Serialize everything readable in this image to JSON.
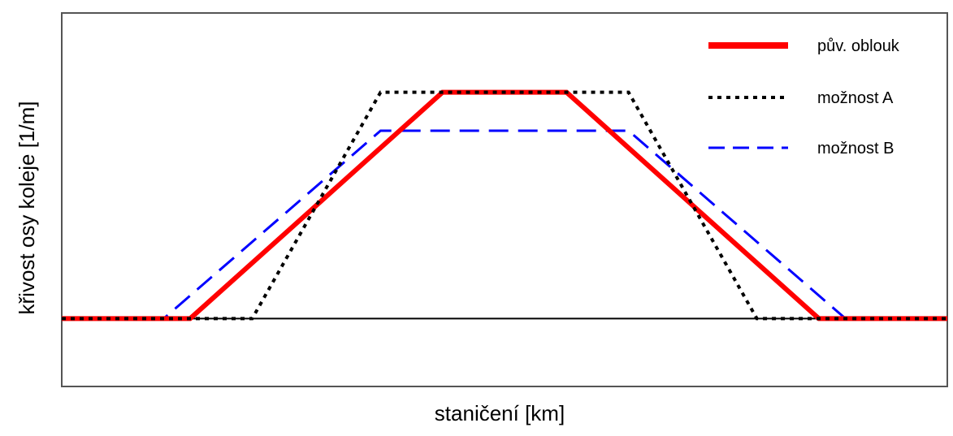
{
  "chart_data": {
    "type": "line",
    "title": "",
    "xlabel": "staničení [km]",
    "ylabel": "křivost osy koleje [1/m]",
    "xlim": [
      0,
      100
    ],
    "ylim": [
      -0.3,
      1.35
    ],
    "grid": false,
    "legend_position": "top-right",
    "baseline": 0,
    "series": [
      {
        "name": "pův. oblouk",
        "color": "#ff0000",
        "style": "solid",
        "x": [
          0,
          14.5,
          43,
          57,
          85.5,
          100
        ],
        "y": [
          0,
          0,
          1,
          1,
          0,
          0
        ]
      },
      {
        "name": "možnost A",
        "color": "#000000",
        "style": "dotted",
        "x": [
          0,
          21.5,
          36,
          64,
          78.5,
          100
        ],
        "y": [
          0,
          0,
          1,
          1,
          0,
          0
        ]
      },
      {
        "name": "možnost B",
        "color": "#0000ff",
        "style": "dashed",
        "x": [
          0,
          11.5,
          36,
          64,
          88.5,
          100
        ],
        "y": [
          0,
          0,
          0.83,
          0.83,
          0,
          0
        ]
      }
    ]
  }
}
